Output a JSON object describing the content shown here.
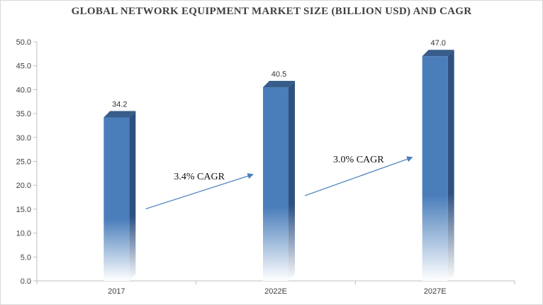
{
  "chart_data": {
    "type": "bar",
    "title": "GLOBAL NETWORK EQUIPMENT MARKET SIZE (BILLION USD) AND CAGR",
    "categories": [
      "2017",
      "2022E",
      "2027E"
    ],
    "values": [
      34.2,
      40.5,
      47.0
    ],
    "data_labels": [
      "34.2",
      "40.5",
      "47.0"
    ],
    "ylim": [
      0,
      50
    ],
    "yticks": [
      "0.0",
      "5.0",
      "10.0",
      "15.0",
      "20.0",
      "25.0",
      "30.0",
      "35.0",
      "40.0",
      "45.0",
      "50.0"
    ],
    "xlabel": "",
    "ylabel": "",
    "grid": false,
    "bar_style": "3d gradient",
    "annotations": [
      {
        "text": "3.4% CAGR",
        "from": "2017",
        "to": "2022E"
      },
      {
        "text": "3.0% CAGR",
        "from": "2022E",
        "to": "2027E"
      }
    ],
    "colors": {
      "bar_front": "#4a7ebb",
      "bar_side": "#2e5182",
      "bar_top": "#385d8a",
      "arrow": "#4a7ebb",
      "axis": "#bfbfbf"
    }
  }
}
